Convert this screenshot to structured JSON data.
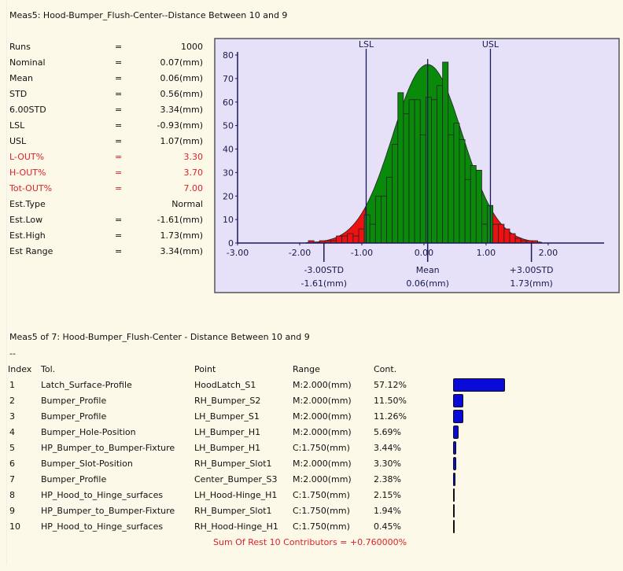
{
  "title": "Meas5: Hood-Bumper_Flush-Center--Distance Between 10 and 9",
  "stats": [
    {
      "label": "Runs",
      "eq": "=",
      "value": "1000",
      "alert": false
    },
    {
      "label": "Nominal",
      "eq": "=",
      "value": "0.07(mm)",
      "alert": false
    },
    {
      "label": "Mean",
      "eq": "=",
      "value": "0.06(mm)",
      "alert": false
    },
    {
      "label": "STD",
      "eq": "=",
      "value": "0.56(mm)",
      "alert": false
    },
    {
      "label": "6.00STD",
      "eq": "=",
      "value": "3.34(mm)",
      "alert": false
    },
    {
      "label": "LSL",
      "eq": "=",
      "value": "-0.93(mm)",
      "alert": false
    },
    {
      "label": "USL",
      "eq": "=",
      "value": "1.07(mm)",
      "alert": false
    },
    {
      "label": "L-OUT%",
      "eq": "=",
      "value": "3.30",
      "alert": true
    },
    {
      "label": "H-OUT%",
      "eq": "=",
      "value": "3.70",
      "alert": true
    },
    {
      "label": "Tot-OUT%",
      "eq": "=",
      "value": "7.00",
      "alert": true
    },
    {
      "label": "Est.Type",
      "eq": "",
      "value": "Normal",
      "alert": false
    },
    {
      "label": "Est.Low",
      "eq": "=",
      "value": "-1.61(mm)",
      "alert": false
    },
    {
      "label": "Est.High",
      "eq": "=",
      "value": "1.73(mm)",
      "alert": false
    },
    {
      "label": "Est Range",
      "eq": "=",
      "value": "3.34(mm)",
      "alert": false
    }
  ],
  "chart_data": {
    "type": "bar",
    "xlim": [
      -3.0,
      2.9
    ],
    "ylim": [
      0,
      80
    ],
    "x_ticks": [
      "-3.00",
      "-2.00",
      "-1.00",
      "0.00",
      "1.00",
      "2.00"
    ],
    "x_tick_values": [
      -3,
      -2,
      -1,
      0,
      1,
      2
    ],
    "y_ticks": [
      "0",
      "10",
      "20",
      "30",
      "40",
      "50",
      "60",
      "70",
      "80"
    ],
    "y_tick_values": [
      0,
      10,
      20,
      30,
      40,
      50,
      60,
      70,
      80
    ],
    "bin_width": 0.09,
    "bin_centers": [
      -1.815,
      -1.725,
      -1.635,
      -1.545,
      -1.455,
      -1.365,
      -1.275,
      -1.185,
      -1.095,
      -1.005,
      -0.915,
      -0.825,
      -0.735,
      -0.645,
      -0.555,
      -0.465,
      -0.375,
      -0.285,
      -0.195,
      -0.105,
      -0.015,
      0.075,
      0.165,
      0.255,
      0.345,
      0.435,
      0.525,
      0.615,
      0.705,
      0.795,
      0.885,
      0.975,
      1.065,
      1.155,
      1.245,
      1.335,
      1.425,
      1.515,
      1.605,
      1.695,
      1.785
    ],
    "counts": [
      1,
      0,
      1,
      1,
      1,
      3,
      3,
      4,
      3,
      6,
      12,
      8,
      20,
      20,
      28,
      42,
      64,
      55,
      61,
      61,
      46,
      62,
      61,
      67,
      77,
      46,
      51,
      44,
      27,
      33,
      31,
      8,
      16,
      8,
      8,
      6,
      4,
      2,
      1,
      1,
      1
    ],
    "curve": {
      "mean": 0.06,
      "std": 0.56,
      "peak": 76
    },
    "lsl": {
      "label": "LSL",
      "value": -0.93
    },
    "usl": {
      "label": "USL",
      "value": 1.07
    },
    "markers": [
      {
        "value": -1.61,
        "label": "-3.00STD",
        "sub": "-1.61(mm)"
      },
      {
        "value": 0.06,
        "label": "Mean",
        "sub": "0.06(mm)"
      },
      {
        "value": 1.73,
        "label": "+3.00STD",
        "sub": "1.73(mm)"
      }
    ],
    "colors": {
      "in": "#0a8a0a",
      "out": "#ee1111",
      "bg": "#e6e0f8",
      "line": "#1a1a5a",
      "axis": "#1a1a5a"
    }
  },
  "contrib": {
    "title": "Meas5 of 7: Hood-Bumper_Flush-Center - Distance Between 10 and 9",
    "dash": "--",
    "headers": {
      "index": "Index",
      "tol": "Tol.",
      "point": "Point",
      "range": "Range",
      "cont": "Cont."
    },
    "rows": [
      {
        "index": "1",
        "tol": "Latch_Surface-Profile",
        "point": "HoodLatch_S1",
        "range": "M:2.000(mm)",
        "cont": "57.12%",
        "pct": 57.12
      },
      {
        "index": "2",
        "tol": "Bumper_Profile",
        "point": "RH_Bumper_S2",
        "range": "M:2.000(mm)",
        "cont": "11.50%",
        "pct": 11.5
      },
      {
        "index": "3",
        "tol": "Bumper_Profile",
        "point": "LH_Bumper_S1",
        "range": "M:2.000(mm)",
        "cont": "11.26%",
        "pct": 11.26
      },
      {
        "index": "4",
        "tol": "Bumper_Hole-Position",
        "point": "LH_Bumper_H1",
        "range": "M:2.000(mm)",
        "cont": "5.69%",
        "pct": 5.69
      },
      {
        "index": "5",
        "tol": "HP_Bumper_to_Bumper-Fixture",
        "point": "LH_Bumper_H1",
        "range": "C:1.750(mm)",
        "cont": "3.44%",
        "pct": 3.44
      },
      {
        "index": "6",
        "tol": "Bumper_Slot-Position",
        "point": "RH_Bumper_Slot1",
        "range": "M:2.000(mm)",
        "cont": "3.30%",
        "pct": 3.3
      },
      {
        "index": "7",
        "tol": "Bumper_Profile",
        "point": "Center_Bumper_S3",
        "range": "M:2.000(mm)",
        "cont": "2.38%",
        "pct": 2.38
      },
      {
        "index": "8",
        "tol": "HP_Hood_to_Hinge_surfaces",
        "point": "LH_Hood-Hinge_H1",
        "range": "C:1.750(mm)",
        "cont": "2.15%",
        "pct": 2.15
      },
      {
        "index": "9",
        "tol": "HP_Bumper_to_Bumper-Fixture",
        "point": "RH_Bumper_Slot1",
        "range": "C:1.750(mm)",
        "cont": "1.94%",
        "pct": 1.94
      },
      {
        "index": "10",
        "tol": "HP_Hood_to_Hinge_surfaces",
        "point": "RH_Hood-Hinge_H1",
        "range": "C:1.750(mm)",
        "cont": "0.45%",
        "pct": 0.45
      }
    ],
    "bar_color": "#0a0ad8",
    "sum_rest": "Sum Of Rest 10 Contributors = +0.760000%"
  }
}
